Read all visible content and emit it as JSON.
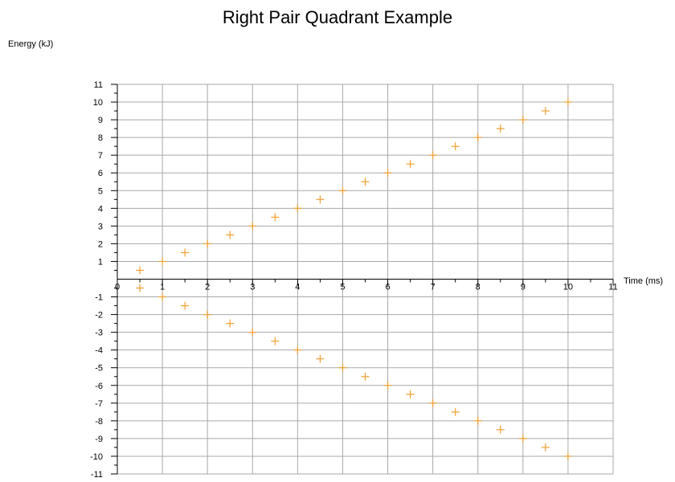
{
  "chart_data": {
    "type": "scatter",
    "title": "Right Pair Quadrant Example",
    "xlabel": "Time (ms)",
    "ylabel": "Energy (kJ)",
    "xlim": [
      0,
      11
    ],
    "ylim": [
      -11,
      11
    ],
    "grid": true,
    "xticks": [
      "0",
      "1",
      "2",
      "3",
      "4",
      "5",
      "6",
      "7",
      "8",
      "9",
      "10",
      "11"
    ],
    "yticks": [
      "-11",
      "-10",
      "-9",
      "-8",
      "-7",
      "-6",
      "-5",
      "-4",
      "-3",
      "-2",
      "-1",
      "1",
      "2",
      "3",
      "4",
      "5",
      "6",
      "7",
      "8",
      "9",
      "10",
      "11"
    ],
    "marker": "plus",
    "series": [
      {
        "color": "#f0a030",
        "x": [
          0.5,
          1,
          1.5,
          2,
          2.5,
          3,
          3.5,
          4,
          4.5,
          5,
          5.5,
          6,
          6.5,
          7,
          7.5,
          8,
          8.5,
          9,
          9.5,
          10
        ],
        "y": [
          0.5,
          1,
          1.5,
          2,
          2.5,
          3,
          3.5,
          4,
          4.5,
          5,
          5.5,
          6,
          6.5,
          7,
          7.5,
          8,
          8.5,
          9,
          9.5,
          10
        ]
      },
      {
        "color": "#f0a030",
        "x": [
          0.5,
          1,
          1.5,
          2,
          2.5,
          3,
          3.5,
          4,
          4.5,
          5,
          5.5,
          6,
          6.5,
          7,
          7.5,
          8,
          8.5,
          9,
          9.5,
          10
        ],
        "y": [
          -0.5,
          -1,
          -1.5,
          -2,
          -2.5,
          -3,
          -3.5,
          -4,
          -4.5,
          -5,
          -5.5,
          -6,
          -6.5,
          -7,
          -7.5,
          -8,
          -8.5,
          -9,
          -9.5,
          -10
        ]
      }
    ]
  }
}
